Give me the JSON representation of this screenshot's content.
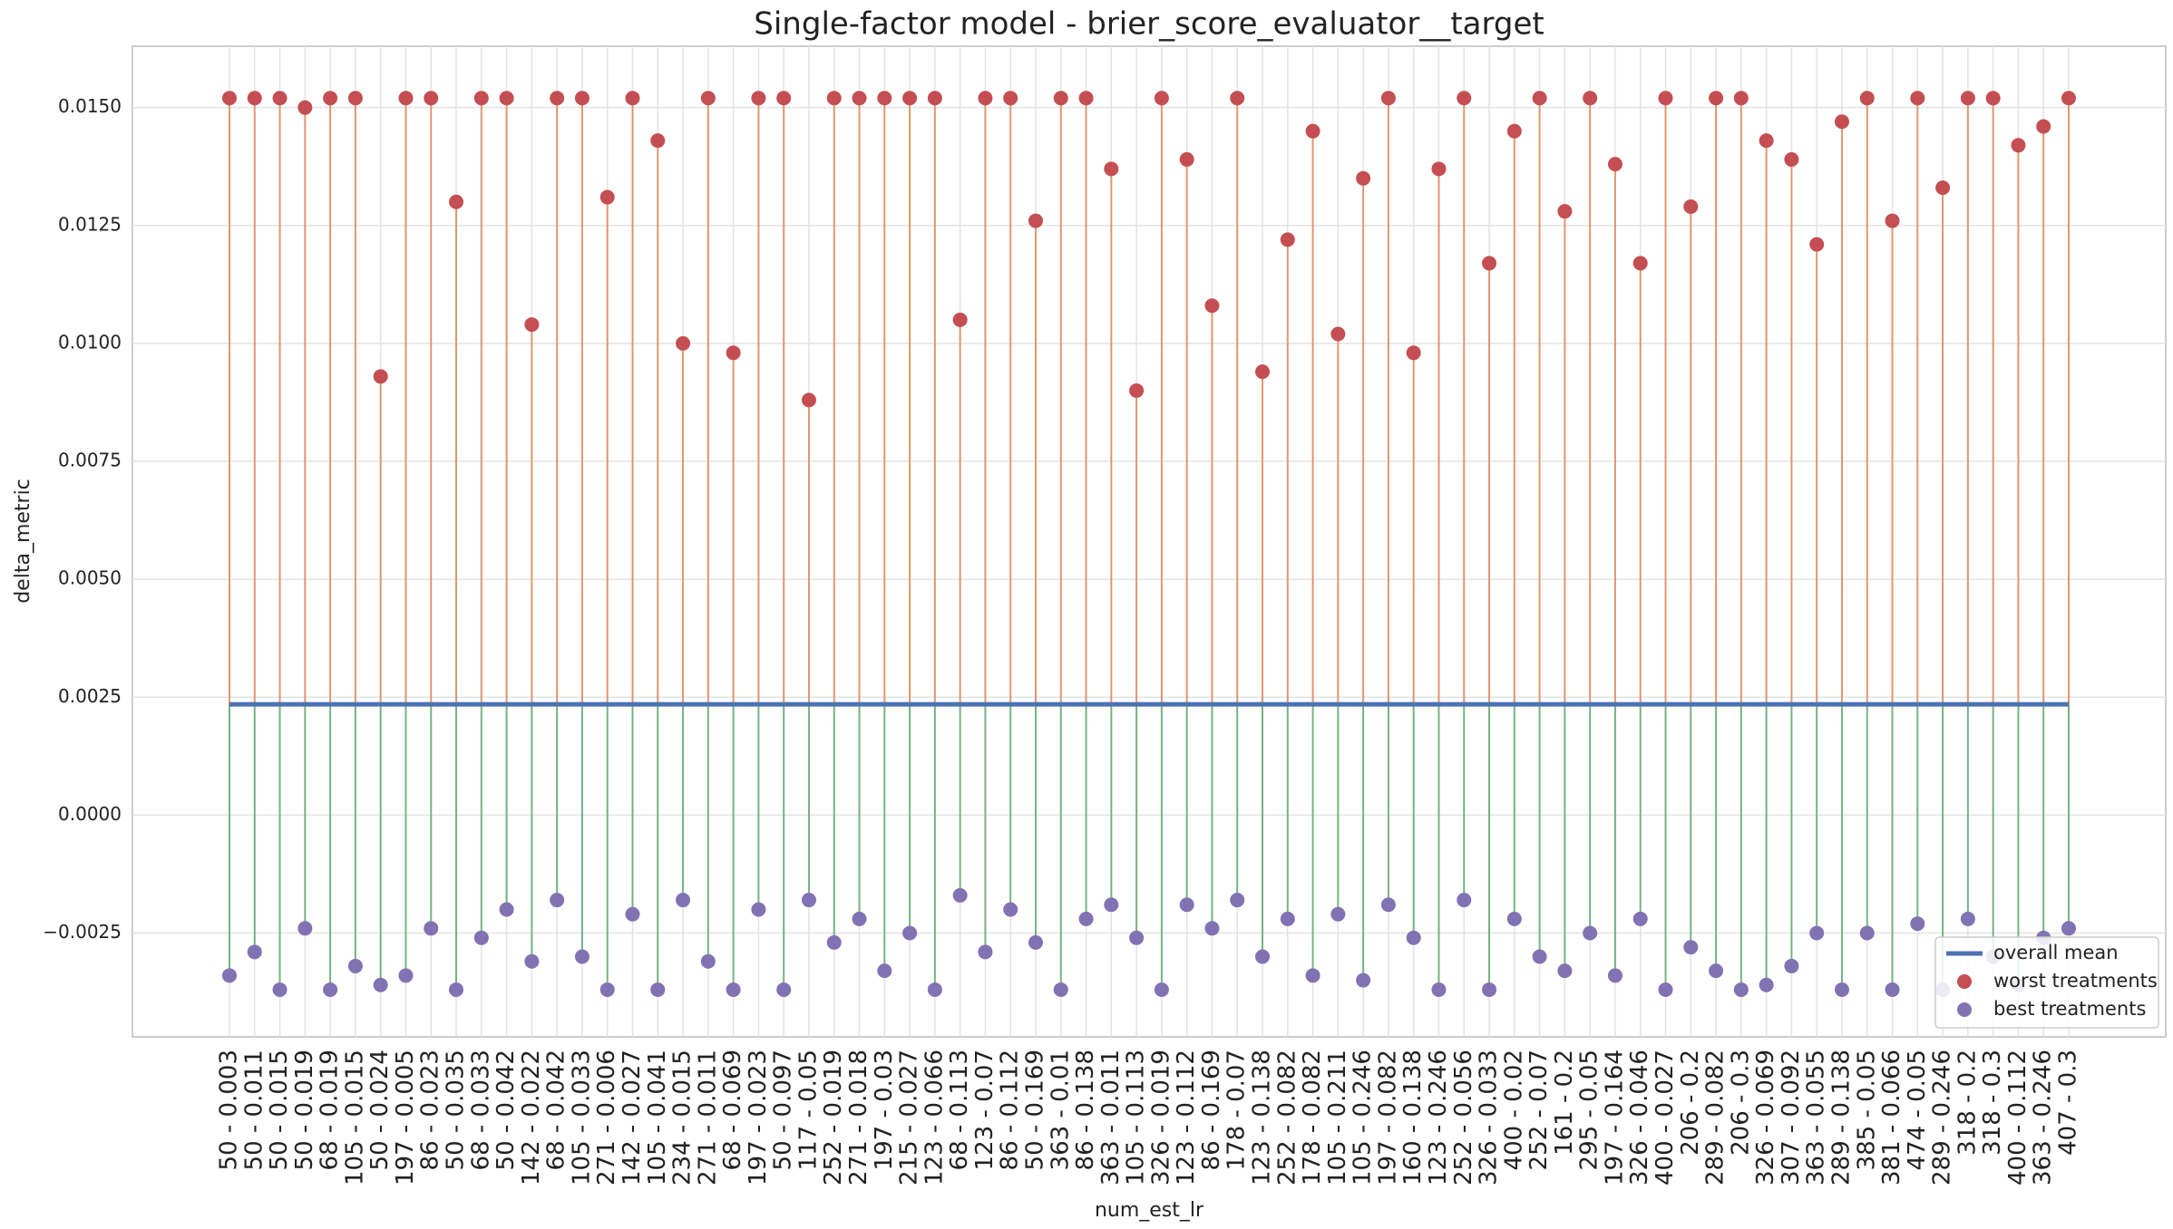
{
  "chart_data": {
    "type": "stem",
    "title": "Single-factor model - brier_score_evaluator__target",
    "x_label": "num_est_lr",
    "y_label": "delta_metric",
    "categories": [
      "50 - 0.003",
      "50 - 0.011",
      "50 - 0.015",
      "50 - 0.019",
      "68 - 0.019",
      "105 - 0.015",
      "50 - 0.024",
      "197 - 0.005",
      "86 - 0.023",
      "50 - 0.035",
      "68 - 0.033",
      "50 - 0.042",
      "142 - 0.022",
      "68 - 0.042",
      "105 - 0.033",
      "271 - 0.006",
      "142 - 0.027",
      "105 - 0.041",
      "234 - 0.015",
      "271 - 0.011",
      "68 - 0.069",
      "197 - 0.023",
      "50 - 0.097",
      "117 - 0.05",
      "252 - 0.019",
      "271 - 0.018",
      "197 - 0.03",
      "215 - 0.027",
      "123 - 0.066",
      "68 - 0.113",
      "123 - 0.07",
      "86 - 0.112",
      "50 - 0.169",
      "363 - 0.01",
      "86 - 0.138",
      "363 - 0.011",
      "105 - 0.113",
      "326 - 0.019",
      "123 - 0.112",
      "86 - 0.169",
      "178 - 0.07",
      "123 - 0.138",
      "252 - 0.082",
      "178 - 0.082",
      "105 - 0.211",
      "105 - 0.246",
      "197 - 0.082",
      "160 - 0.138",
      "123 - 0.246",
      "252 - 0.056",
      "326 - 0.033",
      "400 - 0.02",
      "252 - 0.07",
      "161 - 0.2",
      "295 - 0.05",
      "197 - 0.164",
      "326 - 0.046",
      "400 - 0.027",
      "206 - 0.2",
      "289 - 0.082",
      "206 - 0.3",
      "326 - 0.069",
      "307 - 0.092",
      "363 - 0.055",
      "289 - 0.138",
      "385 - 0.05",
      "381 - 0.066",
      "474 - 0.05",
      "289 - 0.246",
      "318 - 0.2",
      "318 - 0.3",
      "400 - 0.112",
      "363 - 0.246",
      "407 - 0.3"
    ],
    "series": [
      {
        "name": "overall mean",
        "color": "#4c72b0",
        "value": 0.00235
      },
      {
        "name": "worst treatments",
        "color": "#c44e52",
        "stem_color": "#dd8452",
        "values": [
          0.0152,
          0.0152,
          0.0152,
          0.015,
          0.0152,
          0.0152,
          0.0093,
          0.0152,
          0.0152,
          0.013,
          0.0152,
          0.0152,
          0.0104,
          0.0152,
          0.0152,
          0.0131,
          0.0152,
          0.0143,
          0.01,
          0.0152,
          0.0098,
          0.0152,
          0.0152,
          0.0088,
          0.0152,
          0.0152,
          0.0152,
          0.0152,
          0.0152,
          0.0105,
          0.0152,
          0.0152,
          0.0126,
          0.0152,
          0.0152,
          0.0137,
          0.009,
          0.0152,
          0.0139,
          0.0108,
          0.0152,
          0.0094,
          0.0122,
          0.0145,
          0.0102,
          0.0135,
          0.0152,
          0.0098,
          0.0137,
          0.0152,
          0.0117,
          0.0145,
          0.0152,
          0.0128,
          0.0152,
          0.0138,
          0.0117,
          0.0152,
          0.0129,
          0.0152,
          0.0152,
          0.0143,
          0.0139,
          0.0121,
          0.0147,
          0.0152,
          0.0126,
          0.0152,
          0.0133,
          0.0152,
          0.0152,
          0.0142,
          0.0146,
          0.0152
        ]
      },
      {
        "name": "best treatments",
        "color": "#8172b3",
        "stem_color": "#55a868",
        "values": [
          -0.0034,
          -0.0029,
          -0.0037,
          -0.0024,
          -0.0037,
          -0.0032,
          -0.0036,
          -0.0034,
          -0.0024,
          -0.0037,
          -0.0026,
          -0.002,
          -0.0031,
          -0.0018,
          -0.003,
          -0.0037,
          -0.0021,
          -0.0037,
          -0.0018,
          -0.0031,
          -0.0037,
          -0.002,
          -0.0037,
          -0.0018,
          -0.0027,
          -0.0022,
          -0.0033,
          -0.0025,
          -0.0037,
          -0.0017,
          -0.0029,
          -0.002,
          -0.0027,
          -0.0037,
          -0.0022,
          -0.0019,
          -0.0026,
          -0.0037,
          -0.0019,
          -0.0024,
          -0.0018,
          -0.003,
          -0.0022,
          -0.0034,
          -0.0021,
          -0.0035,
          -0.0019,
          -0.0026,
          -0.0037,
          -0.0018,
          -0.0037,
          -0.0022,
          -0.003,
          -0.0033,
          -0.0025,
          -0.0034,
          -0.0022,
          -0.0037,
          -0.0028,
          -0.0033,
          -0.0037,
          -0.0036,
          -0.0032,
          -0.0025,
          -0.0037,
          -0.0025,
          -0.0037,
          -0.0023,
          -0.0037,
          -0.0022,
          -0.003,
          -0.0036,
          -0.0026,
          -0.0024
        ]
      }
    ],
    "ylim": [
      -0.0047,
      0.0163
    ],
    "yticks": [
      {
        "value": -0.0025,
        "label": "−0.0025"
      },
      {
        "value": 0,
        "label": "0.0000"
      },
      {
        "value": 0.0025,
        "label": "0.0025"
      },
      {
        "value": 0.005,
        "label": "0.0050"
      },
      {
        "value": 0.0075,
        "label": "0.0075"
      },
      {
        "value": 0.01,
        "label": "0.0100"
      },
      {
        "value": 0.0125,
        "label": "0.0125"
      },
      {
        "value": 0.015,
        "label": "0.0150"
      }
    ],
    "grid": true,
    "legend": "lower right"
  }
}
